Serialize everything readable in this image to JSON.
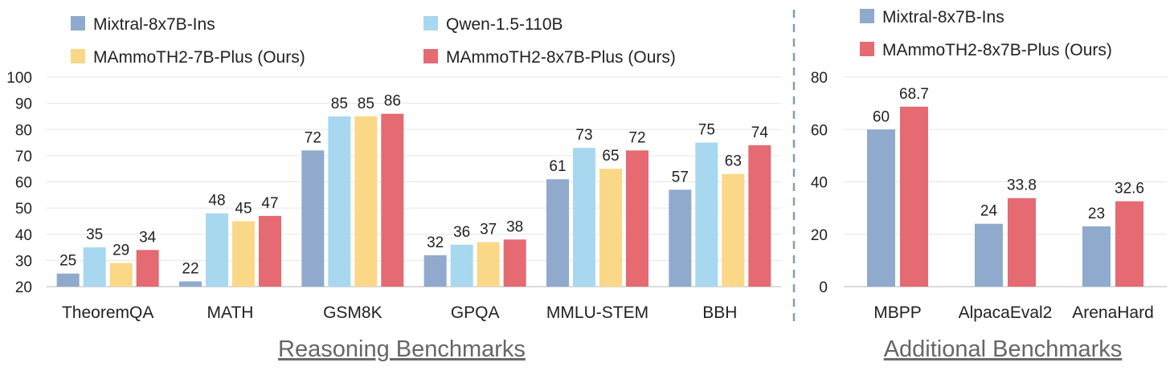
{
  "chart_data": [
    {
      "type": "bar",
      "title": "Reasoning Benchmarks",
      "categories": [
        "TheoremQA",
        "MATH",
        "GSM8K",
        "GPQA",
        "MMLU-STEM",
        "BBH"
      ],
      "ylim": [
        20,
        100
      ],
      "yticks": [
        20,
        30,
        40,
        50,
        60,
        70,
        80,
        90,
        100
      ],
      "grid": true,
      "legend_position": "top",
      "series": [
        {
          "name": "Mixtral-8x7B-Ins",
          "color": "#8faacc",
          "values": [
            25,
            22,
            72,
            32,
            61,
            57
          ],
          "labels": [
            "25",
            "22",
            "72",
            "32",
            "61",
            "57"
          ]
        },
        {
          "name": "Qwen-1.5-110B",
          "color": "#a8d8f0",
          "values": [
            35,
            48,
            85,
            36,
            73,
            75
          ],
          "labels": [
            "35",
            "48",
            "85",
            "36",
            "73",
            "75"
          ]
        },
        {
          "name": "MAmmoTH2-7B-Plus (Ours)",
          "color": "#fbd888",
          "values": [
            29,
            45,
            85,
            37,
            65,
            63
          ],
          "labels": [
            "29",
            "45",
            "85",
            "37",
            "65",
            "63"
          ]
        },
        {
          "name": "MAmmoTH2-8x7B-Plus (Ours)",
          "color": "#e56a72",
          "values": [
            34,
            47,
            86,
            38,
            72,
            74
          ],
          "labels": [
            "34",
            "47",
            "86",
            "38",
            "72",
            "74"
          ]
        }
      ]
    },
    {
      "type": "bar",
      "title": "Additional Benchmarks",
      "categories": [
        "MBPP",
        "AlpacaEval2",
        "ArenaHard"
      ],
      "ylim": [
        0,
        80
      ],
      "yticks": [
        0,
        20,
        40,
        60,
        80
      ],
      "grid": true,
      "legend_position": "top",
      "series": [
        {
          "name": "Mixtral-8x7B-Ins",
          "color": "#8faacc",
          "values": [
            60,
            24,
            23
          ],
          "labels": [
            "60",
            "24",
            "23"
          ]
        },
        {
          "name": "MAmmoTH2-8x7B-Plus (Ours)",
          "color": "#e56a72",
          "values": [
            68.7,
            33.8,
            32.6
          ],
          "labels": [
            "68.7",
            "33.8",
            "32.6"
          ]
        }
      ]
    }
  ]
}
